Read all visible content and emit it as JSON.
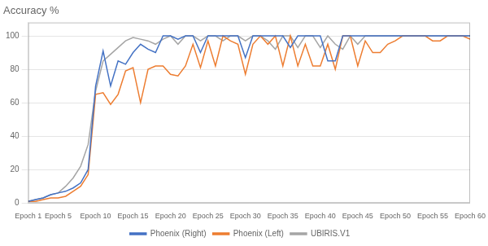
{
  "chart_data": {
    "type": "line",
    "title": "Accuracy %",
    "x": [
      1,
      2,
      3,
      4,
      5,
      6,
      7,
      8,
      9,
      10,
      11,
      12,
      13,
      14,
      15,
      16,
      17,
      18,
      19,
      20,
      21,
      22,
      23,
      24,
      25,
      26,
      27,
      28,
      29,
      30,
      31,
      32,
      33,
      34,
      35,
      36,
      37,
      38,
      39,
      40,
      41,
      42,
      43,
      44,
      45,
      46,
      47,
      48,
      49,
      50,
      51,
      52,
      53,
      54,
      55,
      56,
      57,
      58,
      59,
      60
    ],
    "xlim": [
      1,
      60
    ],
    "xticks": [
      {
        "value": 1,
        "label": "Epoch 1"
      },
      {
        "value": 5,
        "label": "Epoch 5"
      },
      {
        "value": 10,
        "label": "Epoch 10"
      },
      {
        "value": 15,
        "label": "Epoch 15"
      },
      {
        "value": 20,
        "label": "Epoch 20"
      },
      {
        "value": 25,
        "label": "Epoch 25"
      },
      {
        "value": 30,
        "label": "Epoch 30"
      },
      {
        "value": 35,
        "label": "Epoch 35"
      },
      {
        "value": 40,
        "label": "Epoch 40"
      },
      {
        "value": 45,
        "label": "Epoch 45"
      },
      {
        "value": 50,
        "label": "Epoch 50"
      },
      {
        "value": 55,
        "label": "Epoch 55"
      },
      {
        "value": 60,
        "label": "Epoch 60"
      }
    ],
    "ylim": [
      0,
      108
    ],
    "yticks": [
      0,
      20,
      40,
      60,
      80,
      100
    ],
    "grid": "y",
    "legend": "bottom",
    "series": [
      {
        "name": "Phoenix (Right)",
        "color": "#4472c4",
        "values": [
          1,
          2,
          3,
          5,
          6,
          7,
          9,
          12,
          20,
          70,
          91,
          70,
          85,
          83,
          90,
          95,
          92,
          90,
          100,
          100,
          98,
          100,
          100,
          90,
          100,
          100,
          100,
          100,
          100,
          87,
          100,
          100,
          100,
          100,
          100,
          93,
          100,
          100,
          100,
          100,
          85,
          85,
          100,
          100,
          100,
          100,
          100,
          100,
          100,
          100,
          100,
          100,
          100,
          100,
          100,
          100,
          100,
          100,
          100,
          100
        ]
      },
      {
        "name": "Phoenix (Left)",
        "color": "#ed7d31",
        "values": [
          1,
          1,
          2,
          3,
          3,
          4,
          7,
          10,
          17,
          65,
          66,
          59,
          65,
          79,
          81,
          60,
          80,
          82,
          82,
          77,
          76,
          82,
          95,
          81,
          97,
          82,
          100,
          97,
          95,
          77,
          95,
          100,
          95,
          100,
          82,
          100,
          82,
          95,
          82,
          82,
          95,
          80,
          100,
          100,
          82,
          97,
          90,
          90,
          95,
          97,
          100,
          100,
          100,
          100,
          97,
          97,
          100,
          100,
          100,
          98
        ]
      },
      {
        "name": "UBIRIS.V1",
        "color": "#a5a5a5",
        "values": [
          1,
          2,
          3,
          5,
          6,
          10,
          15,
          22,
          35,
          67,
          85,
          89,
          93,
          97,
          99,
          98,
          97,
          95,
          98,
          100,
          95,
          100,
          100,
          97,
          100,
          100,
          97,
          100,
          100,
          97,
          100,
          100,
          97,
          92,
          100,
          100,
          93,
          100,
          100,
          93,
          100,
          95,
          92,
          100,
          95,
          100,
          100,
          100,
          100,
          100,
          100,
          100,
          100,
          100,
          100,
          100,
          100,
          100,
          100,
          100
        ]
      }
    ]
  }
}
